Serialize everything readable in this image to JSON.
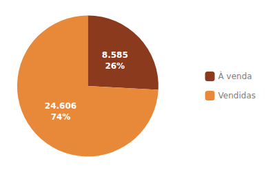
{
  "chart_data": {
    "type": "pie",
    "categories": [
      "À venda",
      "Vendidas"
    ],
    "values": [
      8585,
      24606
    ],
    "value_labels": [
      "8.585\n26%",
      "24.606\n74%"
    ],
    "colors": [
      "#8B3A1E",
      "#E8893A"
    ],
    "data_labels": true,
    "legend": "right"
  }
}
